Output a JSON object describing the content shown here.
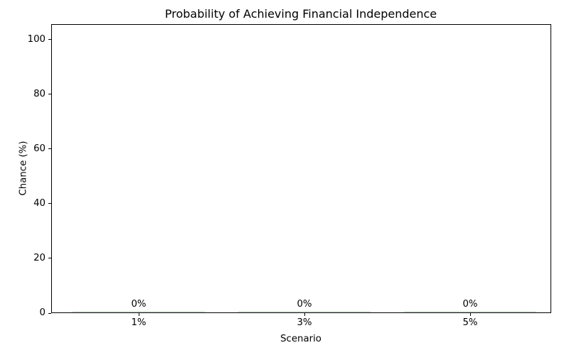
{
  "chart_data": {
    "type": "bar",
    "title": "Probability of Achieving Financial Independence",
    "xlabel": "Scenario",
    "ylabel": "Chance (%)",
    "categories": [
      "1%",
      "3%",
      "5%"
    ],
    "values": [
      0,
      0,
      0
    ],
    "value_labels": [
      "0%",
      "0%",
      "0%"
    ],
    "yticks": [
      0,
      20,
      40,
      60,
      80,
      100
    ],
    "ylim": [
      0,
      105.7
    ],
    "grid": false,
    "legend": null,
    "bar_color": "#d9e6d9",
    "text_color": "#000000",
    "spine_color": "#000000",
    "background_color": "#ffffff"
  }
}
